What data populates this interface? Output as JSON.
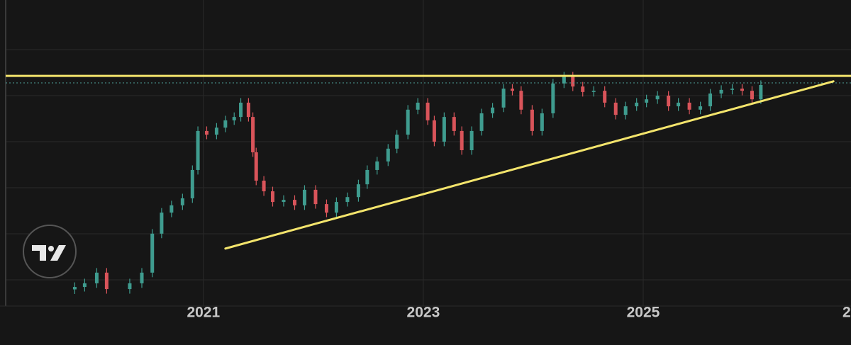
{
  "chart_data": {
    "type": "candlestick",
    "x": [
      2019.83,
      2019.92,
      2020.03,
      2020.12,
      2020.33,
      2020.44,
      2020.535,
      2020.62,
      2020.71,
      2020.81,
      2020.9,
      2020.95,
      2021.03,
      2021.12,
      2021.2,
      2021.28,
      2021.34,
      2021.41,
      2021.45,
      2021.48,
      2021.55,
      2021.63,
      2021.73,
      2021.83,
      2021.92,
      2022.02,
      2022.12,
      2022.21,
      2022.31,
      2022.41,
      2022.49,
      2022.58,
      2022.68,
      2022.76,
      2022.86,
      2022.95,
      2023.04,
      2023.1,
      2023.19,
      2023.28,
      2023.35,
      2023.44,
      2023.53,
      2023.63,
      2023.73,
      2023.81,
      2023.89,
      2023.99,
      2024.08,
      2024.18,
      2024.28,
      2024.36,
      2024.45,
      2024.55,
      2024.65,
      2024.75,
      2024.84,
      2024.94,
      2025.03,
      2025.13,
      2025.23,
      2025.32,
      2025.42,
      2025.52,
      2025.61,
      2025.71,
      2025.81,
      2025.9,
      2025.99,
      2026.07
    ],
    "open": [
      5.0,
      5.8,
      7.0,
      10.5,
      5.1,
      7.0,
      10.5,
      23.3,
      30.2,
      32.6,
      34.9,
      44.2,
      57.0,
      55.8,
      58.1,
      60.5,
      61.6,
      66.3,
      61.6,
      50.0,
      40.7,
      37.2,
      33.7,
      34.4,
      32.6,
      37.7,
      33.0,
      30.2,
      33.7,
      35.3,
      39.5,
      44.2,
      47.0,
      51.2,
      55.8,
      64.0,
      66.3,
      60.5,
      53.5,
      61.6,
      57.0,
      50.7,
      57.0,
      62.8,
      64.7,
      70.9,
      70.2,
      64.0,
      57.0,
      62.8,
      72.6,
      74.9,
      71.6,
      69.8,
      70.2,
      66.3,
      62.3,
      65.1,
      66.3,
      67.4,
      68.6,
      65.1,
      66.3,
      64.0,
      65.1,
      69.3,
      70.5,
      70.9,
      70.2,
      67.4
    ],
    "high": [
      7.3,
      8.5,
      12.0,
      12.0,
      8.5,
      12.0,
      24.8,
      31.7,
      34.1,
      36.4,
      45.7,
      58.5,
      58.5,
      59.6,
      62.0,
      63.1,
      67.8,
      67.8,
      63.1,
      51.5,
      42.2,
      38.7,
      35.9,
      35.9,
      39.2,
      39.2,
      34.5,
      35.2,
      36.8,
      41.0,
      45.7,
      48.5,
      52.7,
      57.3,
      65.5,
      67.8,
      67.8,
      62.0,
      63.1,
      63.1,
      58.5,
      58.5,
      64.3,
      66.2,
      72.4,
      72.4,
      71.7,
      65.5,
      64.3,
      74.1,
      76.4,
      76.4,
      73.1,
      71.7,
      71.7,
      67.8,
      66.6,
      67.8,
      68.9,
      70.1,
      70.1,
      67.8,
      67.8,
      66.6,
      70.8,
      72.0,
      72.4,
      72.4,
      71.7,
      73.6
    ],
    "low": [
      3.5,
      4.3,
      5.5,
      3.6,
      3.6,
      5.5,
      9.0,
      21.8,
      28.7,
      31.1,
      33.4,
      42.7,
      54.3,
      54.3,
      56.6,
      59.0,
      60.1,
      60.1,
      48.5,
      39.2,
      35.7,
      32.2,
      32.2,
      31.1,
      31.1,
      31.5,
      28.7,
      28.7,
      32.2,
      33.8,
      38.0,
      42.7,
      45.5,
      49.7,
      54.3,
      62.5,
      59.0,
      52.0,
      52.0,
      55.5,
      49.2,
      49.2,
      55.5,
      61.3,
      63.2,
      68.7,
      62.5,
      55.5,
      55.5,
      61.3,
      71.1,
      70.1,
      68.3,
      68.3,
      64.8,
      60.8,
      60.8,
      63.6,
      64.8,
      65.9,
      63.6,
      63.6,
      62.5,
      62.5,
      63.6,
      67.8,
      69.0,
      68.7,
      65.9,
      65.9
    ],
    "close": [
      5.8,
      7.0,
      10.5,
      5.1,
      7.0,
      10.5,
      23.3,
      30.2,
      32.6,
      34.9,
      44.2,
      57.0,
      55.8,
      58.1,
      60.5,
      61.6,
      66.3,
      61.6,
      50.0,
      40.7,
      37.2,
      33.7,
      34.4,
      32.6,
      37.7,
      33.0,
      30.2,
      33.7,
      35.3,
      39.5,
      44.2,
      47.0,
      51.2,
      55.8,
      64.0,
      66.3,
      60.5,
      53.5,
      61.6,
      57.0,
      50.7,
      57.0,
      62.8,
      64.7,
      70.9,
      70.2,
      64.0,
      57.0,
      62.8,
      72.6,
      74.9,
      71.6,
      69.8,
      70.2,
      66.3,
      62.3,
      65.1,
      66.3,
      67.4,
      68.6,
      65.1,
      66.3,
      64.0,
      65.1,
      69.3,
      70.5,
      70.9,
      70.2,
      67.4,
      72.1
    ],
    "up_color": "#3f9c8f",
    "down_color": "#d9545a",
    "xlim": [
      2019.15,
      2026.89
    ],
    "ylim": [
      0,
      100
    ],
    "xticks": [
      2021,
      2023,
      2025,
      {
        "value": 2027,
        "label": "2"
      }
    ],
    "grid": true,
    "hlines": [
      {
        "value": 75.1,
        "color": "#f3e46c"
      },
      {
        "value": 72.8,
        "color": "#4fa39a",
        "style": "dotted"
      }
    ],
    "trendlines": [
      {
        "x": [
          2021.2,
          2026.73
        ],
        "values": [
          18.4,
          73.3
        ],
        "color": "#f3e46c"
      }
    ]
  }
}
